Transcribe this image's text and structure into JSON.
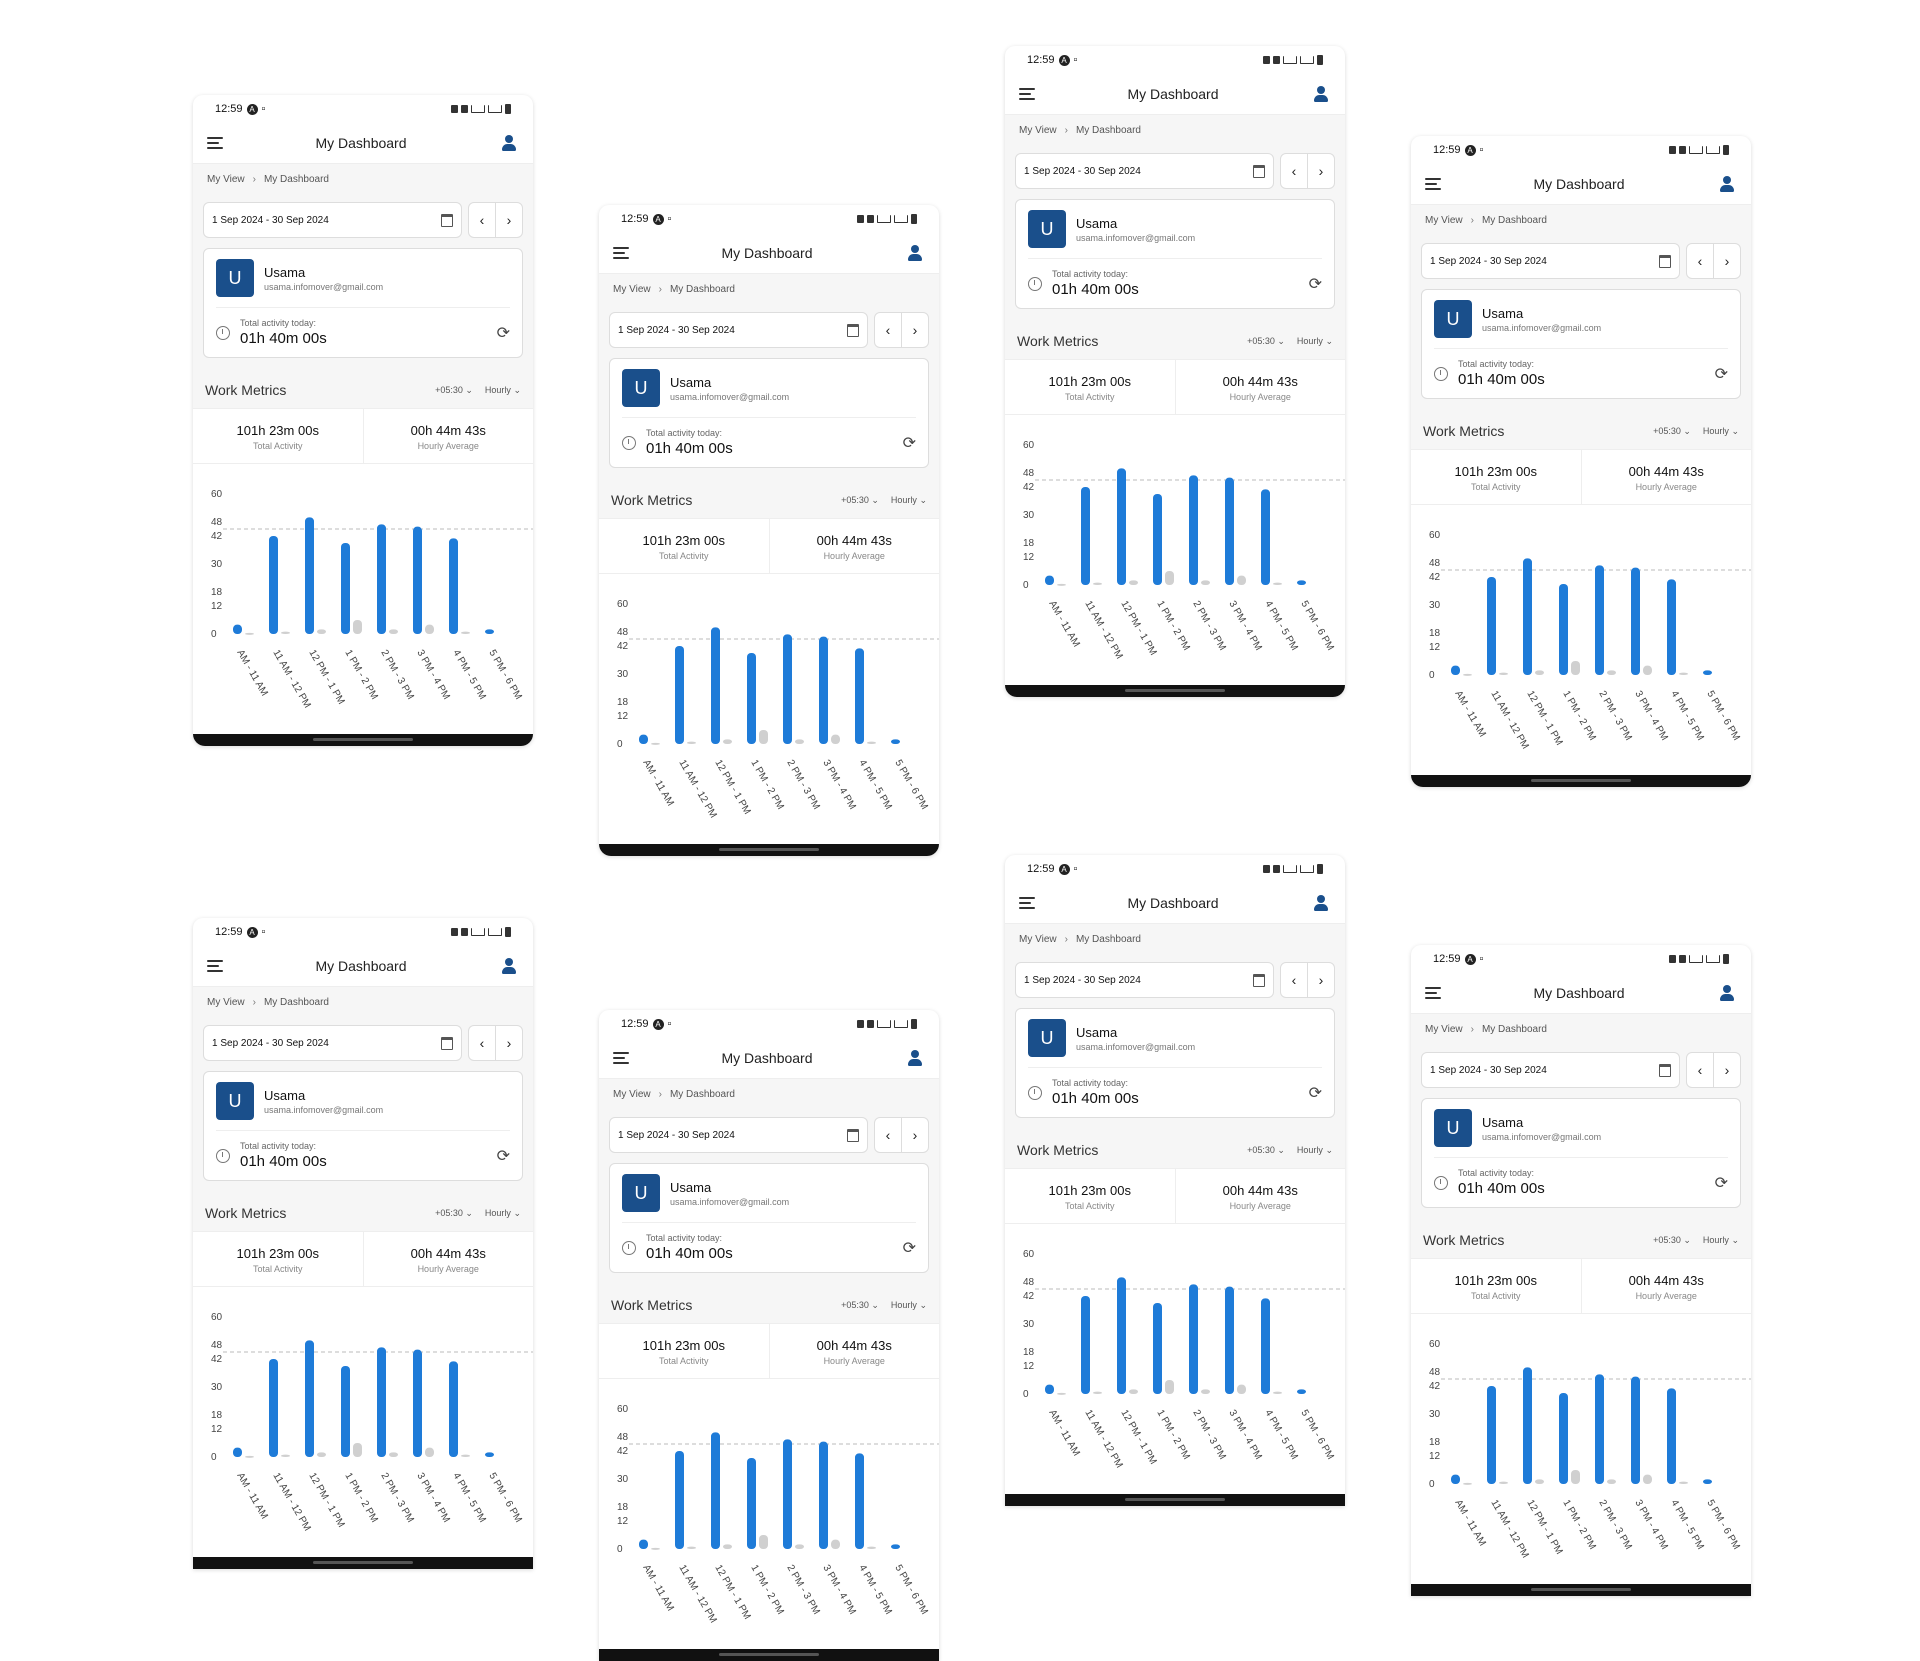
{
  "status": {
    "time": "12:59"
  },
  "appbar": {
    "title": "My Dashboard"
  },
  "breadcrumb": {
    "root": "My View",
    "current": "My Dashboard"
  },
  "date_range": {
    "value": "1 Sep 2024 - 30 Sep 2024",
    "prev": "‹",
    "next": "›"
  },
  "user": {
    "initial": "U",
    "name": "Usama",
    "email": "usama.infomover@gmail.com"
  },
  "activity": {
    "label": "Total activity today:",
    "value": "01h 40m 00s"
  },
  "metrics": {
    "title": "Work Metrics",
    "timezone": "+05:30",
    "interval": "Hourly",
    "total_value": "101h 23m 00s",
    "total_label": "Total Activity",
    "avg_value": "00h 44m 43s",
    "avg_label": "Hourly Average"
  },
  "icons": [
    "menu-icon",
    "user-icon",
    "calendar-icon",
    "clock-icon",
    "refresh-icon",
    "chevron-down-icon"
  ],
  "colors": {
    "primary": "#1a4f8b",
    "bar": "#1e7bd8",
    "bar_secondary": "#d0d0d0",
    "average_line": "#bbbbbb"
  },
  "chart_data": {
    "type": "bar",
    "y_ticks": [
      0,
      12,
      18,
      30,
      42,
      48,
      60
    ],
    "ylim": [
      0,
      60
    ],
    "average_line": 45,
    "categories": [
      "AM - 11 AM",
      "11 AM - 12 PM",
      "12 PM - 1 PM",
      "1 PM - 2 PM",
      "2 PM - 3 PM",
      "3 PM - 4 PM",
      "4 PM - 5 PM",
      "5 PM - 6 PM"
    ],
    "series": [
      {
        "values": [
          4,
          42,
          50,
          39,
          47,
          46,
          41,
          2
        ]
      },
      {
        "values": [
          0.5,
          1,
          2,
          6,
          2,
          4,
          1,
          0
        ]
      }
    ]
  }
}
